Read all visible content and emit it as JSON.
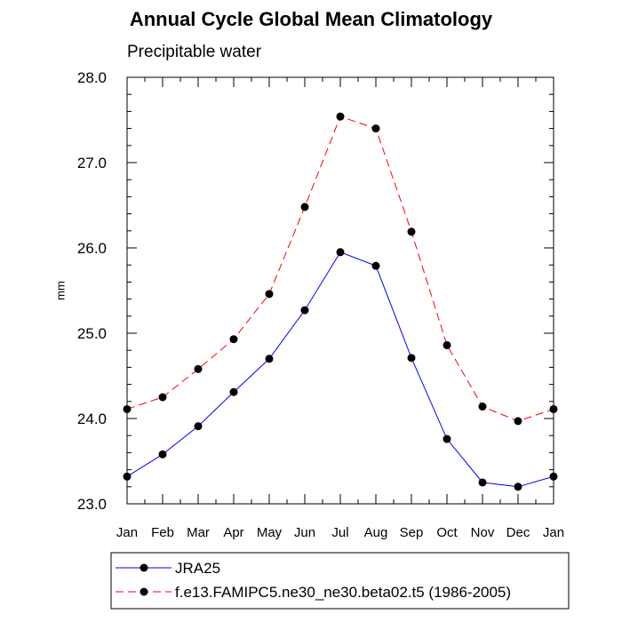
{
  "chart_data": {
    "type": "line",
    "title": "Annual Cycle Global Mean Climatology",
    "subtitle": "Precipitable water",
    "xlabel": "",
    "ylabel": "mm",
    "categories": [
      "Jan",
      "Feb",
      "Mar",
      "Apr",
      "May",
      "Jun",
      "Jul",
      "Aug",
      "Sep",
      "Oct",
      "Nov",
      "Dec",
      "Jan"
    ],
    "ylim": [
      23.0,
      28.0
    ],
    "yticks": [
      "23.0",
      "24.0",
      "25.0",
      "26.0",
      "27.0",
      "28.0"
    ],
    "grid": false,
    "legend_position": "bottom",
    "series": [
      {
        "name": "JRA25",
        "color": "#0000ff",
        "line_style": "solid",
        "marker": "filled-circle",
        "values": [
          23.32,
          23.58,
          23.91,
          24.31,
          24.7,
          25.27,
          25.95,
          25.79,
          24.71,
          23.76,
          23.25,
          23.2,
          23.32
        ]
      },
      {
        "name": "f.e13.FAMIPC5.ne30_ne30.beta02.t5 (1986-2005)",
        "color": "#ff0000",
        "line_style": "dashed",
        "marker": "filled-circle",
        "values": [
          24.11,
          24.25,
          24.58,
          24.93,
          25.46,
          26.48,
          27.54,
          27.4,
          26.19,
          24.86,
          24.14,
          23.97,
          24.11
        ]
      }
    ]
  }
}
